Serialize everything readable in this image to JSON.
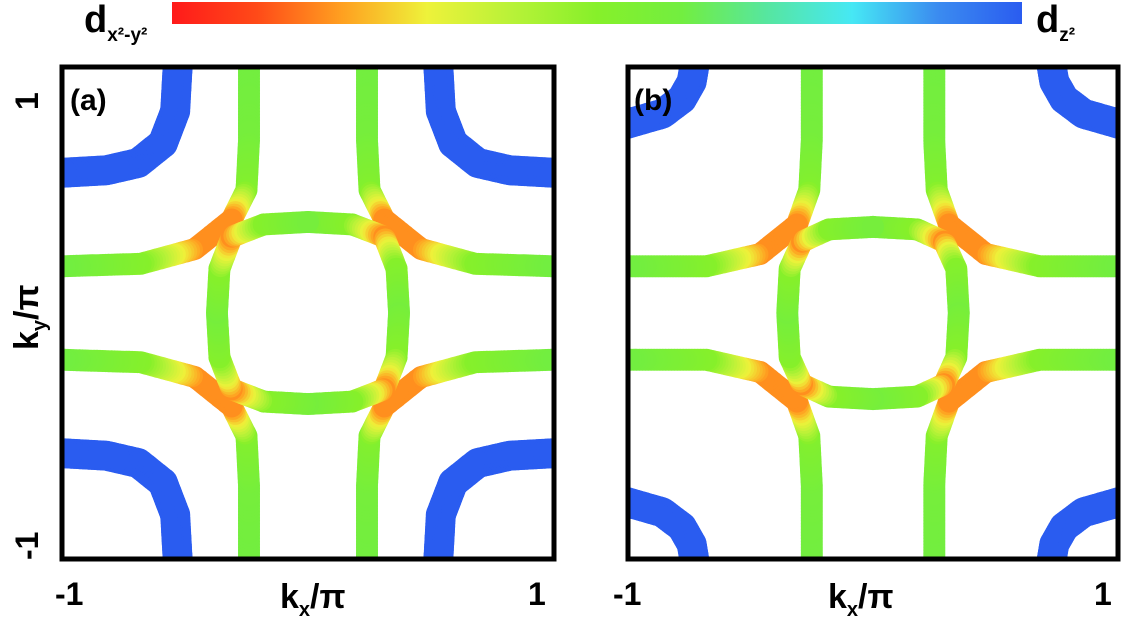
{
  "colorbar": {
    "left_label": {
      "base": "d",
      "sub": "x²-y²"
    },
    "right_label": {
      "base": "d",
      "sub": "z²"
    },
    "stops": [
      "#ff1a1a",
      "#ff4a18",
      "#ffa020",
      "#eef23a",
      "#b8f238",
      "#86f02a",
      "#72ee40",
      "#56e6a0",
      "#46e8f4",
      "#3b8cf0",
      "#2a5cf0"
    ]
  },
  "chart_data": [
    {
      "type": "scatter",
      "panel_label": "(a)",
      "xlabel": {
        "base": "k",
        "sub": "x",
        "suffix": "/π"
      },
      "ylabel": {
        "base": "k",
        "sub": "y",
        "suffix": "/π"
      },
      "xlim": [
        -1,
        1
      ],
      "ylim": [
        -1,
        1
      ],
      "xticks": [
        "-1",
        "1"
      ],
      "yticks": [
        "-1",
        "1"
      ],
      "grid": false,
      "color_scale": "orbital weight (0 = dx²-y², 1 = dz²)",
      "series": [
        {
          "band": "outer",
          "points": [
            [
              -0.53,
              1.0
            ],
            [
              -0.54,
              0.82
            ],
            [
              -0.59,
              0.69
            ],
            [
              -0.69,
              0.61
            ],
            [
              -0.82,
              0.58
            ],
            [
              -1.0,
              0.57
            ]
          ],
          "weight": [
            1,
            1,
            1,
            1,
            1,
            1
          ]
        },
        {
          "band": "outer",
          "points": [
            [
              0.53,
              1.0
            ],
            [
              0.54,
              0.82
            ],
            [
              0.59,
              0.69
            ],
            [
              0.69,
              0.61
            ],
            [
              0.82,
              0.58
            ],
            [
              1.0,
              0.57
            ]
          ],
          "weight": [
            1,
            1,
            1,
            1,
            1,
            1
          ]
        },
        {
          "band": "outer",
          "points": [
            [
              -0.53,
              -1.0
            ],
            [
              -0.54,
              -0.82
            ],
            [
              -0.59,
              -0.69
            ],
            [
              -0.69,
              -0.61
            ],
            [
              -0.82,
              -0.58
            ],
            [
              -1.0,
              -0.57
            ]
          ],
          "weight": [
            1,
            1,
            1,
            1,
            1,
            1
          ]
        },
        {
          "band": "outer",
          "points": [
            [
              0.53,
              -1.0
            ],
            [
              0.54,
              -0.82
            ],
            [
              0.59,
              -0.69
            ],
            [
              0.69,
              -0.61
            ],
            [
              0.82,
              -0.58
            ],
            [
              1.0,
              -0.57
            ]
          ],
          "weight": [
            1,
            1,
            1,
            1,
            1,
            1
          ]
        },
        {
          "band": "middle",
          "points": [
            [
              -0.24,
              1.0
            ],
            [
              -0.24,
              0.7
            ],
            [
              -0.25,
              0.5
            ],
            [
              -0.31,
              0.38
            ],
            [
              -0.46,
              0.26
            ],
            [
              -0.68,
              0.2
            ],
            [
              -1.0,
              0.19
            ]
          ],
          "weight": [
            0.6,
            0.58,
            0.52,
            0.18,
            0.18,
            0.5,
            0.6
          ]
        },
        {
          "band": "middle",
          "points": [
            [
              0.24,
              1.0
            ],
            [
              0.24,
              0.7
            ],
            [
              0.25,
              0.5
            ],
            [
              0.31,
              0.38
            ],
            [
              0.46,
              0.26
            ],
            [
              0.68,
              0.2
            ],
            [
              1.0,
              0.19
            ]
          ],
          "weight": [
            0.6,
            0.58,
            0.52,
            0.18,
            0.18,
            0.5,
            0.6
          ]
        },
        {
          "band": "middle",
          "points": [
            [
              -0.24,
              -1.0
            ],
            [
              -0.24,
              -0.7
            ],
            [
              -0.25,
              -0.5
            ],
            [
              -0.31,
              -0.38
            ],
            [
              -0.46,
              -0.26
            ],
            [
              -0.68,
              -0.2
            ],
            [
              -1.0,
              -0.19
            ]
          ],
          "weight": [
            0.6,
            0.58,
            0.52,
            0.18,
            0.18,
            0.5,
            0.6
          ]
        },
        {
          "band": "middle",
          "points": [
            [
              0.24,
              -1.0
            ],
            [
              0.24,
              -0.7
            ],
            [
              0.25,
              -0.5
            ],
            [
              0.31,
              -0.38
            ],
            [
              0.46,
              -0.26
            ],
            [
              0.68,
              -0.2
            ],
            [
              1.0,
              -0.19
            ]
          ],
          "weight": [
            0.6,
            0.58,
            0.52,
            0.18,
            0.18,
            0.5,
            0.6
          ]
        },
        {
          "band": "inner",
          "points": [
            [
              0.0,
              0.37
            ],
            [
              0.18,
              0.36
            ],
            [
              0.31,
              0.31
            ],
            [
              0.36,
              0.18
            ],
            [
              0.37,
              0.0
            ],
            [
              0.36,
              -0.18
            ],
            [
              0.31,
              -0.31
            ],
            [
              0.18,
              -0.36
            ],
            [
              0.0,
              -0.37
            ],
            [
              -0.18,
              -0.36
            ],
            [
              -0.31,
              -0.31
            ],
            [
              -0.36,
              -0.18
            ],
            [
              -0.37,
              0.0
            ],
            [
              -0.36,
              0.18
            ],
            [
              -0.31,
              0.31
            ],
            [
              -0.18,
              0.36
            ],
            [
              0.0,
              0.37
            ]
          ],
          "weight": [
            0.58,
            0.5,
            0.18,
            0.5,
            0.58,
            0.5,
            0.18,
            0.5,
            0.58,
            0.5,
            0.18,
            0.5,
            0.58,
            0.5,
            0.18,
            0.5,
            0.58
          ]
        }
      ]
    },
    {
      "type": "scatter",
      "panel_label": "(b)",
      "xlabel": {
        "base": "k",
        "sub": "x",
        "suffix": "/π"
      },
      "ylabel": null,
      "xlim": [
        -1,
        1
      ],
      "ylim": [
        -1,
        1
      ],
      "xticks": [
        "-1",
        "1"
      ],
      "yticks": [],
      "grid": false,
      "color_scale": "orbital weight (0 = dx²-y², 1 = dz²)",
      "series": [
        {
          "band": "outer",
          "points": [
            [
              -1.0,
              0.77
            ],
            [
              -0.86,
              0.81
            ],
            [
              -0.78,
              0.87
            ],
            [
              -0.74,
              0.94
            ],
            [
              -0.73,
              1.0
            ]
          ],
          "weight": [
            1,
            1,
            1,
            1,
            1
          ]
        },
        {
          "band": "outer",
          "points": [
            [
              1.0,
              0.77
            ],
            [
              0.86,
              0.81
            ],
            [
              0.78,
              0.87
            ],
            [
              0.74,
              0.94
            ],
            [
              0.73,
              1.0
            ]
          ],
          "weight": [
            1,
            1,
            1,
            1,
            1
          ]
        },
        {
          "band": "outer",
          "points": [
            [
              -1.0,
              -0.77
            ],
            [
              -0.86,
              -0.81
            ],
            [
              -0.78,
              -0.87
            ],
            [
              -0.74,
              -0.94
            ],
            [
              -0.73,
              -1.0
            ]
          ],
          "weight": [
            1,
            1,
            1,
            1,
            1
          ]
        },
        {
          "band": "outer",
          "points": [
            [
              1.0,
              -0.77
            ],
            [
              0.86,
              -0.81
            ],
            [
              0.78,
              -0.87
            ],
            [
              0.74,
              -0.94
            ],
            [
              0.73,
              -1.0
            ]
          ],
          "weight": [
            1,
            1,
            1,
            1,
            1
          ]
        },
        {
          "band": "middle",
          "points": [
            [
              -0.25,
              1.0
            ],
            [
              -0.25,
              0.7
            ],
            [
              -0.26,
              0.5
            ],
            [
              -0.31,
              0.36
            ],
            [
              -0.46,
              0.24
            ],
            [
              -0.68,
              0.19
            ],
            [
              -1.0,
              0.19
            ]
          ],
          "weight": [
            0.6,
            0.58,
            0.52,
            0.18,
            0.18,
            0.5,
            0.6
          ]
        },
        {
          "band": "middle",
          "points": [
            [
              0.25,
              1.0
            ],
            [
              0.25,
              0.7
            ],
            [
              0.26,
              0.5
            ],
            [
              0.31,
              0.36
            ],
            [
              0.46,
              0.24
            ],
            [
              0.68,
              0.19
            ],
            [
              1.0,
              0.19
            ]
          ],
          "weight": [
            0.6,
            0.58,
            0.52,
            0.18,
            0.18,
            0.5,
            0.6
          ]
        },
        {
          "band": "middle",
          "points": [
            [
              -0.25,
              -1.0
            ],
            [
              -0.25,
              -0.7
            ],
            [
              -0.26,
              -0.5
            ],
            [
              -0.31,
              -0.36
            ],
            [
              -0.46,
              -0.24
            ],
            [
              -0.68,
              -0.19
            ],
            [
              -1.0,
              -0.19
            ]
          ],
          "weight": [
            0.6,
            0.58,
            0.52,
            0.18,
            0.18,
            0.5,
            0.6
          ]
        },
        {
          "band": "middle",
          "points": [
            [
              0.25,
              -1.0
            ],
            [
              0.25,
              -0.7
            ],
            [
              0.26,
              -0.5
            ],
            [
              0.31,
              -0.36
            ],
            [
              0.46,
              -0.24
            ],
            [
              0.68,
              -0.19
            ],
            [
              1.0,
              -0.19
            ]
          ],
          "weight": [
            0.6,
            0.58,
            0.52,
            0.18,
            0.18,
            0.5,
            0.6
          ]
        },
        {
          "band": "inner",
          "points": [
            [
              0.0,
              0.35
            ],
            [
              0.18,
              0.34
            ],
            [
              0.29,
              0.29
            ],
            [
              0.34,
              0.18
            ],
            [
              0.35,
              0.0
            ],
            [
              0.34,
              -0.18
            ],
            [
              0.29,
              -0.29
            ],
            [
              0.18,
              -0.34
            ],
            [
              0.0,
              -0.35
            ],
            [
              -0.18,
              -0.34
            ],
            [
              -0.29,
              -0.29
            ],
            [
              -0.34,
              -0.18
            ],
            [
              -0.35,
              0.0
            ],
            [
              -0.34,
              0.18
            ],
            [
              -0.29,
              0.29
            ],
            [
              -0.18,
              0.34
            ],
            [
              0.0,
              0.35
            ]
          ],
          "weight": [
            0.58,
            0.5,
            0.18,
            0.5,
            0.58,
            0.5,
            0.18,
            0.5,
            0.58,
            0.5,
            0.18,
            0.5,
            0.58,
            0.5,
            0.18,
            0.5,
            0.58
          ]
        }
      ]
    }
  ]
}
